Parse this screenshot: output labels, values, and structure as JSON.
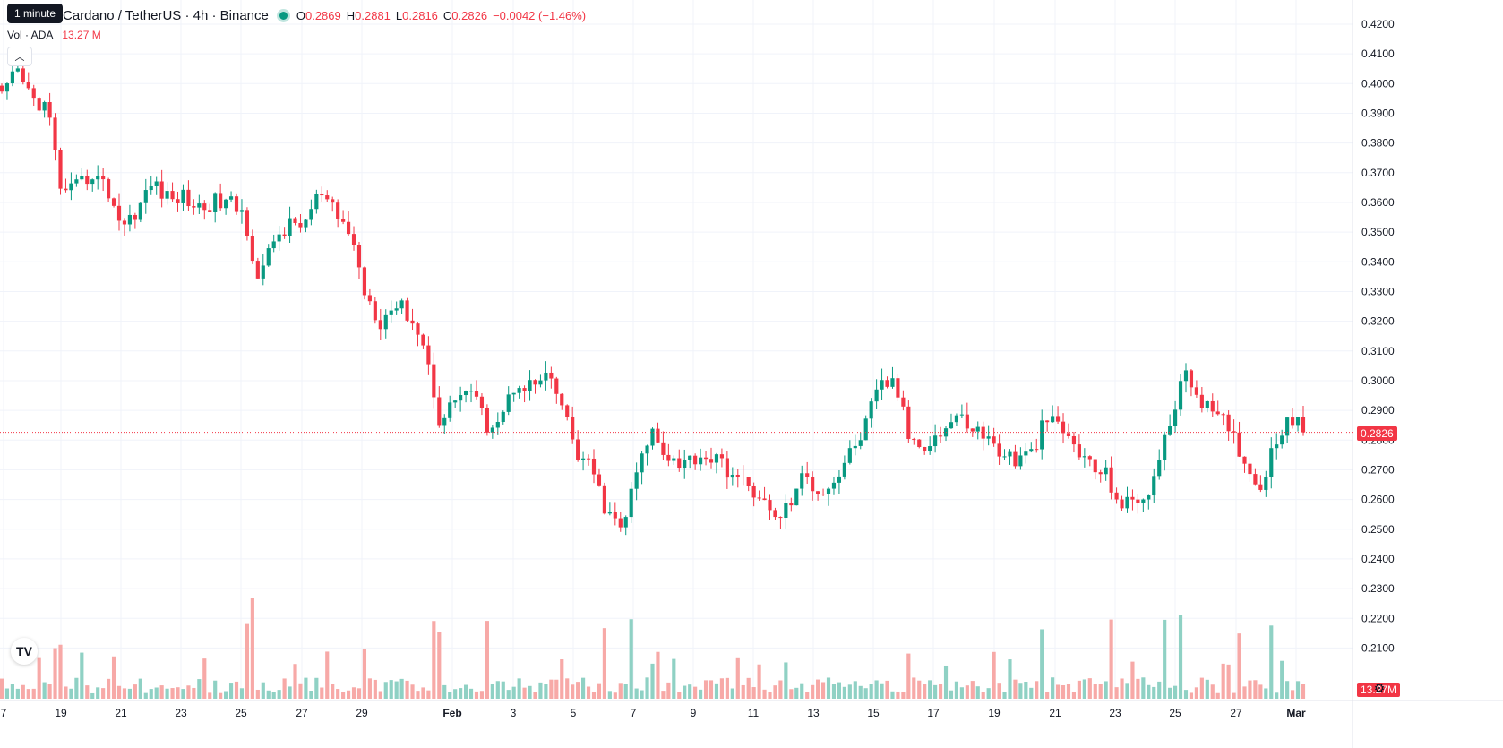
{
  "header": {
    "symbol_title": "Cardano / TetherUS · 4h · Binance",
    "tooltip": "1 minute",
    "ohlc": {
      "o_label": "O",
      "o_value": "0.2869",
      "h_label": "H",
      "h_value": "0.2881",
      "l_label": "L",
      "l_value": "0.2816",
      "c_label": "C",
      "c_value": "0.2826",
      "change": "−0.0042 (−1.46%)"
    },
    "volume_label": "Vol · ADA",
    "volume_value": "13.27 M"
  },
  "price_tag": "0.2826",
  "volume_tag": "13.27M",
  "colors": {
    "up": "#089981",
    "down": "#f23645",
    "vol_up": "#8fd1c4",
    "vol_down": "#f7a9a7"
  },
  "icons": {
    "collapse": "chevron-up-icon",
    "logo": "tradingview-logo-icon",
    "settings": "gear-icon"
  },
  "chart_data": {
    "type": "candlestick",
    "ylim": [
      0.2,
      0.42
    ],
    "y_ticks": [
      "0.4200",
      "0.4100",
      "0.4000",
      "0.3900",
      "0.3800",
      "0.3700",
      "0.3600",
      "0.3500",
      "0.3400",
      "0.3300",
      "0.3200",
      "0.3100",
      "0.3000",
      "0.2900",
      "0.2800",
      "0.2700",
      "0.2600",
      "0.2500",
      "0.2400",
      "0.2300",
      "0.2200",
      "0.2100"
    ],
    "y_tick_values": [
      0.42,
      0.41,
      0.4,
      0.39,
      0.38,
      0.37,
      0.36,
      0.35,
      0.34,
      0.33,
      0.32,
      0.31,
      0.3,
      0.29,
      0.28,
      0.27,
      0.26,
      0.25,
      0.24,
      0.23,
      0.22,
      0.21
    ],
    "x_ticks": [
      "7",
      "19",
      "21",
      "23",
      "25",
      "27",
      "29",
      "Feb",
      "3",
      "5",
      "7",
      "9",
      "11",
      "13",
      "15",
      "17",
      "19",
      "21",
      "23",
      "25",
      "27",
      "Mar"
    ],
    "last_price": 0.2826,
    "key_closes": [
      0.395,
      0.404,
      0.395,
      0.392,
      0.362,
      0.365,
      0.37,
      0.364,
      0.352,
      0.358,
      0.367,
      0.361,
      0.362,
      0.358,
      0.36,
      0.36,
      0.356,
      0.333,
      0.348,
      0.352,
      0.353,
      0.363,
      0.356,
      0.35,
      0.33,
      0.32,
      0.326,
      0.322,
      0.31,
      0.285,
      0.295,
      0.297,
      0.285,
      0.288,
      0.3,
      0.298,
      0.301,
      0.292,
      0.275,
      0.27,
      0.255,
      0.25,
      0.27,
      0.283,
      0.275,
      0.272,
      0.275,
      0.274,
      0.27,
      0.265,
      0.262,
      0.253,
      0.258,
      0.268,
      0.263,
      0.266,
      0.275,
      0.284,
      0.298,
      0.3,
      0.28,
      0.279,
      0.282,
      0.288,
      0.285,
      0.281,
      0.276,
      0.273,
      0.275,
      0.287,
      0.284,
      0.277,
      0.271,
      0.268,
      0.258,
      0.259,
      0.265,
      0.282,
      0.302,
      0.296,
      0.288,
      0.285,
      0.275,
      0.263,
      0.277,
      0.289,
      0.2826
    ],
    "volume_ticks": []
  }
}
